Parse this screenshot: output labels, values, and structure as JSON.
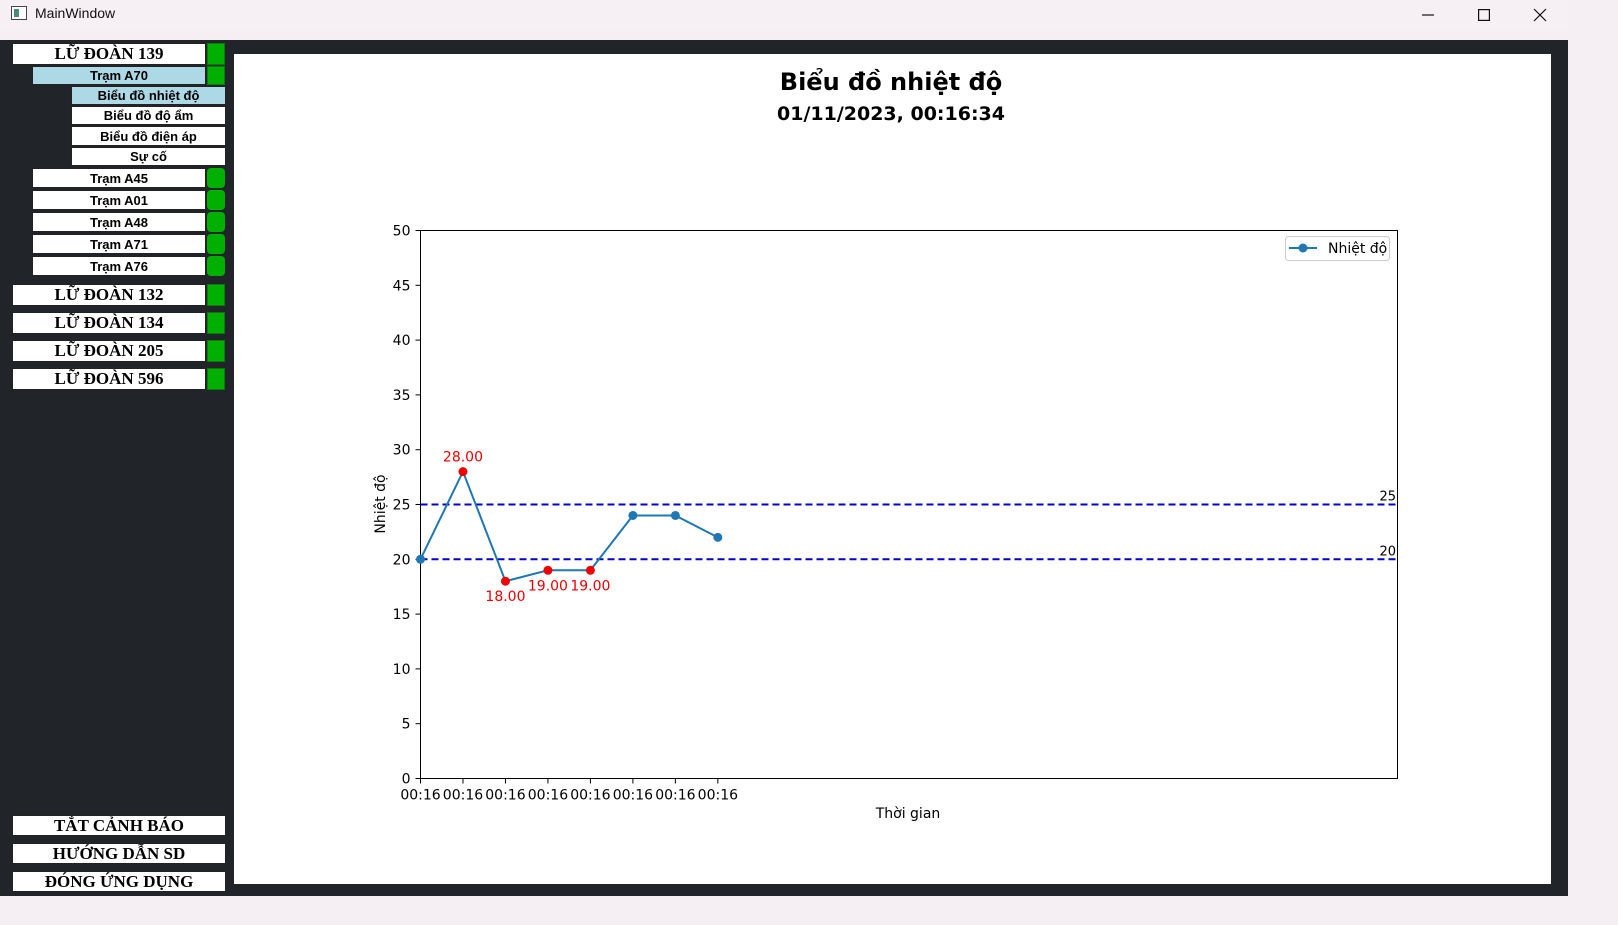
{
  "window": {
    "title": "MainWindow"
  },
  "sidebar": {
    "groups": [
      {
        "label": "LỮ ĐOÀN 139",
        "status_color": "#00b000"
      },
      {
        "label": "LỮ ĐOÀN 132",
        "status_color": "#00b000"
      },
      {
        "label": "LỮ ĐOÀN 134",
        "status_color": "#00b000"
      },
      {
        "label": "LỮ ĐOÀN 205",
        "status_color": "#00b000"
      },
      {
        "label": "LỮ ĐOÀN 596",
        "status_color": "#00b000"
      }
    ],
    "stations": [
      {
        "label": "Trạm A70",
        "selected": true
      },
      {
        "label": "Trạm A45"
      },
      {
        "label": "Trạm A01"
      },
      {
        "label": "Trạm A48"
      },
      {
        "label": "Trạm A71"
      },
      {
        "label": "Trạm A76"
      }
    ],
    "subitems": [
      {
        "label": "Biểu đồ nhiệt độ",
        "selected": true
      },
      {
        "label": "Biểu đồ độ ẩm"
      },
      {
        "label": "Biểu đồ điện áp"
      },
      {
        "label": "Sự cố"
      }
    ],
    "bottom_buttons": [
      "TẮT CẢNH BÁO",
      "HƯỚNG DẪN SD",
      "ĐÓNG ỨNG DỤNG"
    ],
    "selected_color": "#add8e6"
  },
  "chart_data": {
    "type": "line",
    "title": "Biểu đồ nhiệt độ",
    "subtitle": "01/11/2023, 00:16:34",
    "xlabel": "Thời gian",
    "ylabel": "Nhiệt độ",
    "x": [
      "00:16",
      "00:16",
      "00:16",
      "00:16",
      "00:16",
      "00:16",
      "00:16",
      "00:16"
    ],
    "series": [
      {
        "name": "Nhiệt độ",
        "values": [
          20,
          28,
          18,
          19,
          19,
          24,
          24,
          22
        ],
        "color": "#1f77b4"
      }
    ],
    "ylim": [
      0,
      50
    ],
    "yticks": [
      0,
      5,
      10,
      15,
      20,
      25,
      30,
      35,
      40,
      45,
      50
    ],
    "x_slots": 23,
    "thresholds": [
      {
        "value": 25,
        "label": "25",
        "color": "#0000cc"
      },
      {
        "value": 20,
        "label": "20",
        "color": "#0000cc"
      }
    ],
    "alert_color": "#ee0000",
    "alert_labels": [
      "28.00",
      "18.00",
      "19.00",
      "19.00"
    ],
    "legend": "top-right",
    "grid": false
  }
}
